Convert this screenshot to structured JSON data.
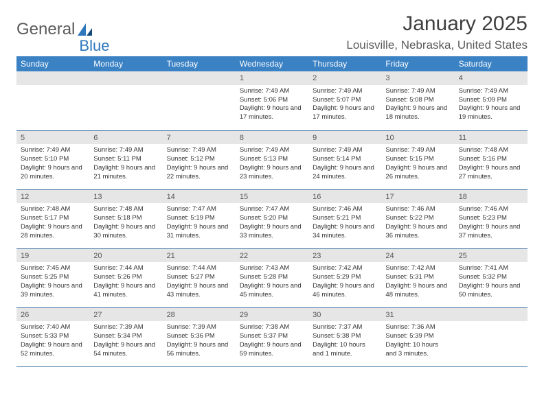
{
  "brand": {
    "part1": "General",
    "part2": "Blue"
  },
  "title": "January 2025",
  "location": "Louisville, Nebraska, United States",
  "colors": {
    "header_bg": "#3b82c4",
    "header_text": "#ffffff",
    "daynum_bg": "#e6e6e6",
    "row_border": "#3b6f9e",
    "brand_gray": "#5a5a5a",
    "brand_blue": "#2d77bd"
  },
  "weekdays": [
    "Sunday",
    "Monday",
    "Tuesday",
    "Wednesday",
    "Thursday",
    "Friday",
    "Saturday"
  ],
  "weeks": [
    [
      {
        "blank": true
      },
      {
        "blank": true
      },
      {
        "blank": true
      },
      {
        "n": "1",
        "sunrise": "7:49 AM",
        "sunset": "5:06 PM",
        "daylight": "9 hours and 17 minutes."
      },
      {
        "n": "2",
        "sunrise": "7:49 AM",
        "sunset": "5:07 PM",
        "daylight": "9 hours and 17 minutes."
      },
      {
        "n": "3",
        "sunrise": "7:49 AM",
        "sunset": "5:08 PM",
        "daylight": "9 hours and 18 minutes."
      },
      {
        "n": "4",
        "sunrise": "7:49 AM",
        "sunset": "5:09 PM",
        "daylight": "9 hours and 19 minutes."
      }
    ],
    [
      {
        "n": "5",
        "sunrise": "7:49 AM",
        "sunset": "5:10 PM",
        "daylight": "9 hours and 20 minutes."
      },
      {
        "n": "6",
        "sunrise": "7:49 AM",
        "sunset": "5:11 PM",
        "daylight": "9 hours and 21 minutes."
      },
      {
        "n": "7",
        "sunrise": "7:49 AM",
        "sunset": "5:12 PM",
        "daylight": "9 hours and 22 minutes."
      },
      {
        "n": "8",
        "sunrise": "7:49 AM",
        "sunset": "5:13 PM",
        "daylight": "9 hours and 23 minutes."
      },
      {
        "n": "9",
        "sunrise": "7:49 AM",
        "sunset": "5:14 PM",
        "daylight": "9 hours and 24 minutes."
      },
      {
        "n": "10",
        "sunrise": "7:49 AM",
        "sunset": "5:15 PM",
        "daylight": "9 hours and 26 minutes."
      },
      {
        "n": "11",
        "sunrise": "7:48 AM",
        "sunset": "5:16 PM",
        "daylight": "9 hours and 27 minutes."
      }
    ],
    [
      {
        "n": "12",
        "sunrise": "7:48 AM",
        "sunset": "5:17 PM",
        "daylight": "9 hours and 28 minutes."
      },
      {
        "n": "13",
        "sunrise": "7:48 AM",
        "sunset": "5:18 PM",
        "daylight": "9 hours and 30 minutes."
      },
      {
        "n": "14",
        "sunrise": "7:47 AM",
        "sunset": "5:19 PM",
        "daylight": "9 hours and 31 minutes."
      },
      {
        "n": "15",
        "sunrise": "7:47 AM",
        "sunset": "5:20 PM",
        "daylight": "9 hours and 33 minutes."
      },
      {
        "n": "16",
        "sunrise": "7:46 AM",
        "sunset": "5:21 PM",
        "daylight": "9 hours and 34 minutes."
      },
      {
        "n": "17",
        "sunrise": "7:46 AM",
        "sunset": "5:22 PM",
        "daylight": "9 hours and 36 minutes."
      },
      {
        "n": "18",
        "sunrise": "7:46 AM",
        "sunset": "5:23 PM",
        "daylight": "9 hours and 37 minutes."
      }
    ],
    [
      {
        "n": "19",
        "sunrise": "7:45 AM",
        "sunset": "5:25 PM",
        "daylight": "9 hours and 39 minutes."
      },
      {
        "n": "20",
        "sunrise": "7:44 AM",
        "sunset": "5:26 PM",
        "daylight": "9 hours and 41 minutes."
      },
      {
        "n": "21",
        "sunrise": "7:44 AM",
        "sunset": "5:27 PM",
        "daylight": "9 hours and 43 minutes."
      },
      {
        "n": "22",
        "sunrise": "7:43 AM",
        "sunset": "5:28 PM",
        "daylight": "9 hours and 45 minutes."
      },
      {
        "n": "23",
        "sunrise": "7:42 AM",
        "sunset": "5:29 PM",
        "daylight": "9 hours and 46 minutes."
      },
      {
        "n": "24",
        "sunrise": "7:42 AM",
        "sunset": "5:31 PM",
        "daylight": "9 hours and 48 minutes."
      },
      {
        "n": "25",
        "sunrise": "7:41 AM",
        "sunset": "5:32 PM",
        "daylight": "9 hours and 50 minutes."
      }
    ],
    [
      {
        "n": "26",
        "sunrise": "7:40 AM",
        "sunset": "5:33 PM",
        "daylight": "9 hours and 52 minutes."
      },
      {
        "n": "27",
        "sunrise": "7:39 AM",
        "sunset": "5:34 PM",
        "daylight": "9 hours and 54 minutes."
      },
      {
        "n": "28",
        "sunrise": "7:39 AM",
        "sunset": "5:36 PM",
        "daylight": "9 hours and 56 minutes."
      },
      {
        "n": "29",
        "sunrise": "7:38 AM",
        "sunset": "5:37 PM",
        "daylight": "9 hours and 59 minutes."
      },
      {
        "n": "30",
        "sunrise": "7:37 AM",
        "sunset": "5:38 PM",
        "daylight": "10 hours and 1 minute."
      },
      {
        "n": "31",
        "sunrise": "7:36 AM",
        "sunset": "5:39 PM",
        "daylight": "10 hours and 3 minutes."
      },
      {
        "blank": true
      }
    ]
  ],
  "labels": {
    "sunrise": "Sunrise:",
    "sunset": "Sunset:",
    "daylight": "Daylight:"
  }
}
